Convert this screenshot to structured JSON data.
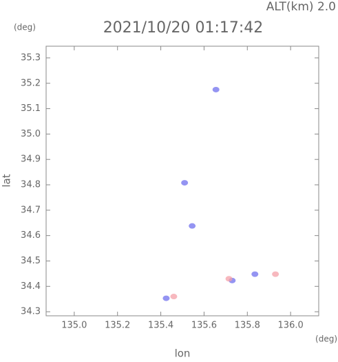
{
  "chart_data": {
    "type": "scatter",
    "title": "2021/10/20 01:17:42",
    "annotation": "ALT(km) 2.0",
    "x_label": "lon",
    "y_label": "lat",
    "x_unit": "(deg)",
    "y_unit": "(deg)",
    "xlim": [
      134.87,
      136.13
    ],
    "ylim": [
      34.284,
      35.346
    ],
    "xticks": [
      {
        "value": 135.0,
        "label": "135.0"
      },
      {
        "value": 135.2,
        "label": "135.2"
      },
      {
        "value": 135.4,
        "label": "135.4"
      },
      {
        "value": 135.6,
        "label": "135.6"
      },
      {
        "value": 135.8,
        "label": "135.8"
      },
      {
        "value": 136.0,
        "label": "136.0"
      }
    ],
    "yticks": [
      34.3,
      34.4,
      34.5,
      34.6,
      34.7,
      34.8,
      34.9,
      {
        "value": 35.0,
        "label": "35.0"
      },
      35.1,
      35.2,
      35.3
    ],
    "series": [
      {
        "color": "#7070ee",
        "x": [
          135.655,
          135.51,
          135.545,
          135.425,
          135.73,
          135.835
        ],
        "y": [
          35.175,
          34.808,
          34.638,
          34.353,
          34.423,
          34.448
        ]
      },
      {
        "color": "#f4a0a8",
        "x": [
          135.46,
          135.715,
          135.93
        ],
        "y": [
          34.36,
          34.43,
          34.448
        ]
      }
    ]
  }
}
